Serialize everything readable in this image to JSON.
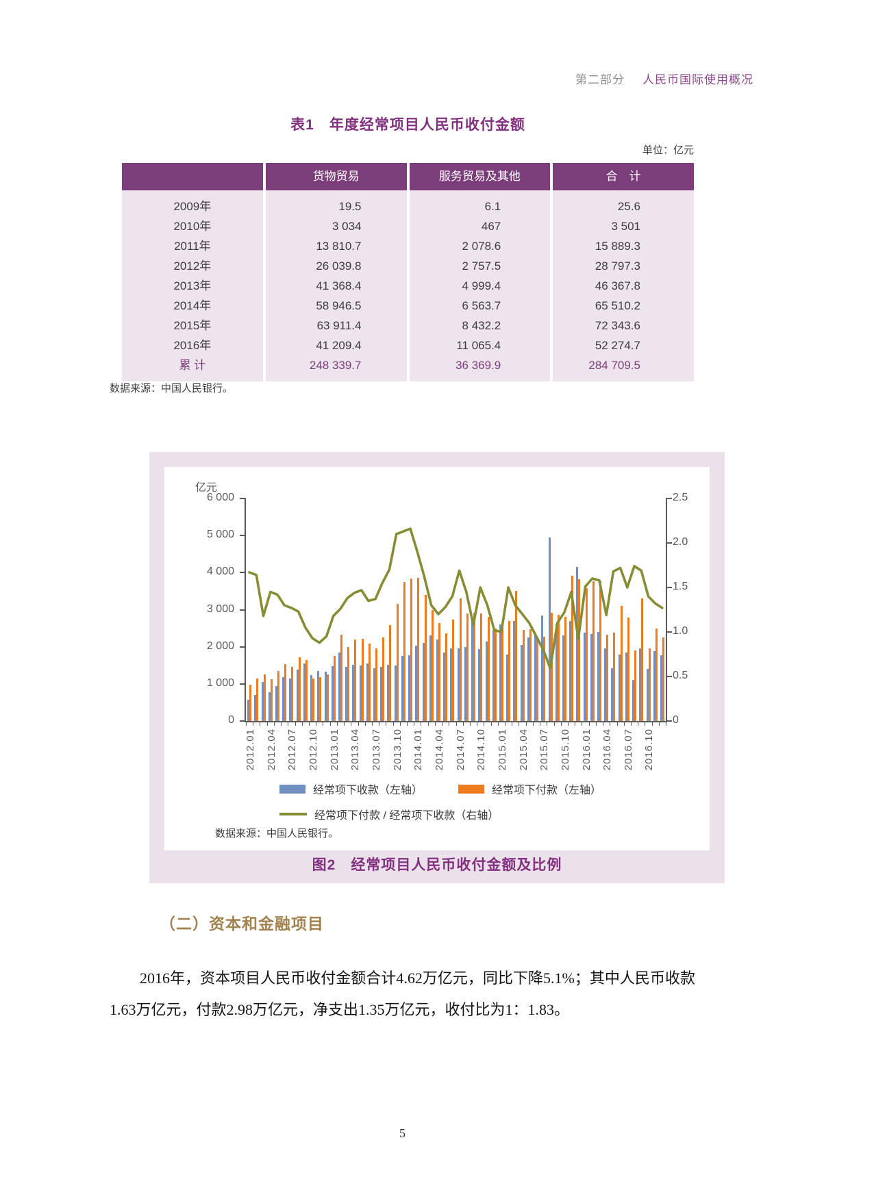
{
  "page": {
    "header": {
      "part_label": "第二部分",
      "part_title": "人民币国际使用概况"
    },
    "page_number": "5"
  },
  "colors": {
    "primary_purple": "#7c3d7b",
    "title_purple": "#82307f",
    "table_body_bg": "#ede4ed",
    "chart_band_bg": "#ebe1ea",
    "receipts_blue": "#6f90c1",
    "payments_orange": "#ee7c1f",
    "ratio_olive": "#878d33",
    "section_gold": "#a2834f",
    "axis_gray": "#595959"
  },
  "table1": {
    "title": "表1　年度经常项目人民币收付金额",
    "unit_note": "单位：亿元",
    "columns": [
      "",
      "货物贸易",
      "服务贸易及其他",
      "合　计"
    ],
    "rows": [
      {
        "label": "2009年",
        "goods": "19.5",
        "services": "6.1",
        "total": "25.6",
        "emphasis": false
      },
      {
        "label": "2010年",
        "goods": "3 034",
        "services": "467",
        "total": "3 501",
        "emphasis": false
      },
      {
        "label": "2011年",
        "goods": "13 810.7",
        "services": "2 078.6",
        "total": "15 889.3",
        "emphasis": false
      },
      {
        "label": "2012年",
        "goods": "26 039.8",
        "services": "2 757.5",
        "total": "28 797.3",
        "emphasis": false
      },
      {
        "label": "2013年",
        "goods": "41 368.4",
        "services": "4 999.4",
        "total": "46 367.8",
        "emphasis": false
      },
      {
        "label": "2014年",
        "goods": "58 946.5",
        "services": "6 563.7",
        "total": "65 510.2",
        "emphasis": false
      },
      {
        "label": "2015年",
        "goods": "63 911.4",
        "services": "8 432.2",
        "total": "72 343.6",
        "emphasis": false
      },
      {
        "label": "2016年",
        "goods": "41 209.4",
        "services": "11 065.4",
        "total": "52 274.7",
        "emphasis": false
      },
      {
        "label": "累 计",
        "goods": "248 339.7",
        "services": "36 369.9",
        "total": "284 709.5",
        "emphasis": true
      }
    ],
    "source_note": "数据来源：中国人民银行。"
  },
  "figure2": {
    "caption": "图2　经常项目人民币收付金额及比例",
    "source_note": "数据来源：中国人民银行。",
    "axis_unit": "亿元",
    "legend": [
      {
        "label": "经常项下收款（左轴）",
        "type": "bar",
        "color": "#6f90c1"
      },
      {
        "label": "经常项下付款（左轴）",
        "type": "bar",
        "color": "#ee7c1f"
      },
      {
        "label": "经常项下付款 / 经常项下收款（右轴）",
        "type": "line",
        "color": "#878d33"
      }
    ],
    "chart_data": {
      "type": "combo-bar-line",
      "x": [
        "2012.01",
        "2012.02",
        "2012.03",
        "2012.04",
        "2012.05",
        "2012.06",
        "2012.07",
        "2012.08",
        "2012.09",
        "2012.10",
        "2012.11",
        "2012.12",
        "2013.01",
        "2013.02",
        "2013.03",
        "2013.04",
        "2013.05",
        "2013.06",
        "2013.07",
        "2013.08",
        "2013.09",
        "2013.10",
        "2013.11",
        "2013.12",
        "2014.01",
        "2014.02",
        "2014.03",
        "2014.04",
        "2014.05",
        "2014.06",
        "2014.07",
        "2014.08",
        "2014.09",
        "2014.10",
        "2014.11",
        "2014.12",
        "2015.01",
        "2015.02",
        "2015.03",
        "2015.04",
        "2015.05",
        "2015.06",
        "2015.07",
        "2015.08",
        "2015.09",
        "2015.10",
        "2015.11",
        "2015.12",
        "2016.01",
        "2016.02",
        "2016.03",
        "2016.04",
        "2016.05",
        "2016.06",
        "2016.07",
        "2016.08",
        "2016.09",
        "2016.10",
        "2016.11",
        "2016.12"
      ],
      "x_label_every": 3,
      "series": [
        {
          "name": "经常项下收款（左轴）",
          "type": "bar",
          "axis": "left",
          "color": "#6f90c1",
          "values": [
            580,
            700,
            1060,
            780,
            950,
            1180,
            1140,
            1390,
            1560,
            1230,
            1340,
            1330,
            1480,
            1850,
            1450,
            1520,
            1500,
            1550,
            1420,
            1450,
            1520,
            1500,
            1760,
            1780,
            2030,
            2100,
            2300,
            2200,
            1850,
            1950,
            1950,
            2000,
            2700,
            1930,
            2150,
            2450,
            2600,
            1800,
            2700,
            2050,
            2250,
            2350,
            2850,
            4950,
            2600,
            2300,
            2700,
            4160,
            2380,
            2350,
            2400,
            1950,
            1420,
            1800,
            1850,
            1100,
            1950,
            1400,
            1890,
            1780
          ]
        },
        {
          "name": "经常项下付款（左轴）",
          "type": "bar",
          "axis": "left",
          "color": "#ee7c1f",
          "values": [
            970,
            1150,
            1250,
            1130,
            1350,
            1530,
            1450,
            1710,
            1640,
            1140,
            1180,
            1260,
            1750,
            2330,
            2000,
            2190,
            2210,
            2090,
            1950,
            2250,
            2580,
            3150,
            3750,
            3840,
            3860,
            3400,
            2990,
            2640,
            2370,
            2730,
            3300,
            2900,
            2920,
            2900,
            2800,
            2500,
            2600,
            2700,
            3510,
            2460,
            2480,
            2230,
            2280,
            2920,
            2860,
            2810,
            3920,
            3830,
            3590,
            3760,
            3790,
            2320,
            2390,
            3100,
            2780,
            1910,
            3300,
            1960,
            2490,
            2260
          ]
        },
        {
          "name": "经常项下付款 / 经常项下收款（右轴）",
          "type": "line",
          "axis": "right",
          "color": "#878d33",
          "values": [
            1.67,
            1.64,
            1.18,
            1.45,
            1.42,
            1.3,
            1.27,
            1.23,
            1.05,
            0.93,
            0.88,
            0.95,
            1.18,
            1.26,
            1.38,
            1.44,
            1.47,
            1.35,
            1.37,
            1.55,
            1.7,
            2.1,
            2.13,
            2.16,
            1.9,
            1.62,
            1.3,
            1.2,
            1.28,
            1.4,
            1.69,
            1.45,
            1.08,
            1.5,
            1.3,
            1.02,
            1.0,
            1.5,
            1.3,
            1.2,
            1.1,
            0.95,
            0.8,
            0.59,
            1.1,
            1.22,
            1.45,
            0.92,
            1.51,
            1.6,
            1.58,
            1.19,
            1.68,
            1.72,
            1.5,
            1.74,
            1.69,
            1.4,
            1.32,
            1.27
          ]
        }
      ],
      "left_axis": {
        "title": "亿元",
        "min": 0,
        "max": 6000,
        "step": 1000,
        "tick_labels": [
          "6 000",
          "5 000",
          "4 000",
          "3 000",
          "2 000",
          "1 000",
          "0"
        ]
      },
      "right_axis": {
        "min": 0,
        "max": 2.5,
        "step": 0.5,
        "tick_labels": [
          "2.5",
          "2.0",
          "1.5",
          "1.0",
          "0.5",
          "0"
        ]
      },
      "grid": false,
      "legend_position": "bottom"
    }
  },
  "section": {
    "heading": "（二）资本和金融项目",
    "paragraph": "2016年，资本项目人民币收付金额合计4.62万亿元，同比下降5.1%；其中人民币收款1.63万亿元，付款2.98万亿元，净支出1.35万亿元，收付比为1：1.83。"
  }
}
